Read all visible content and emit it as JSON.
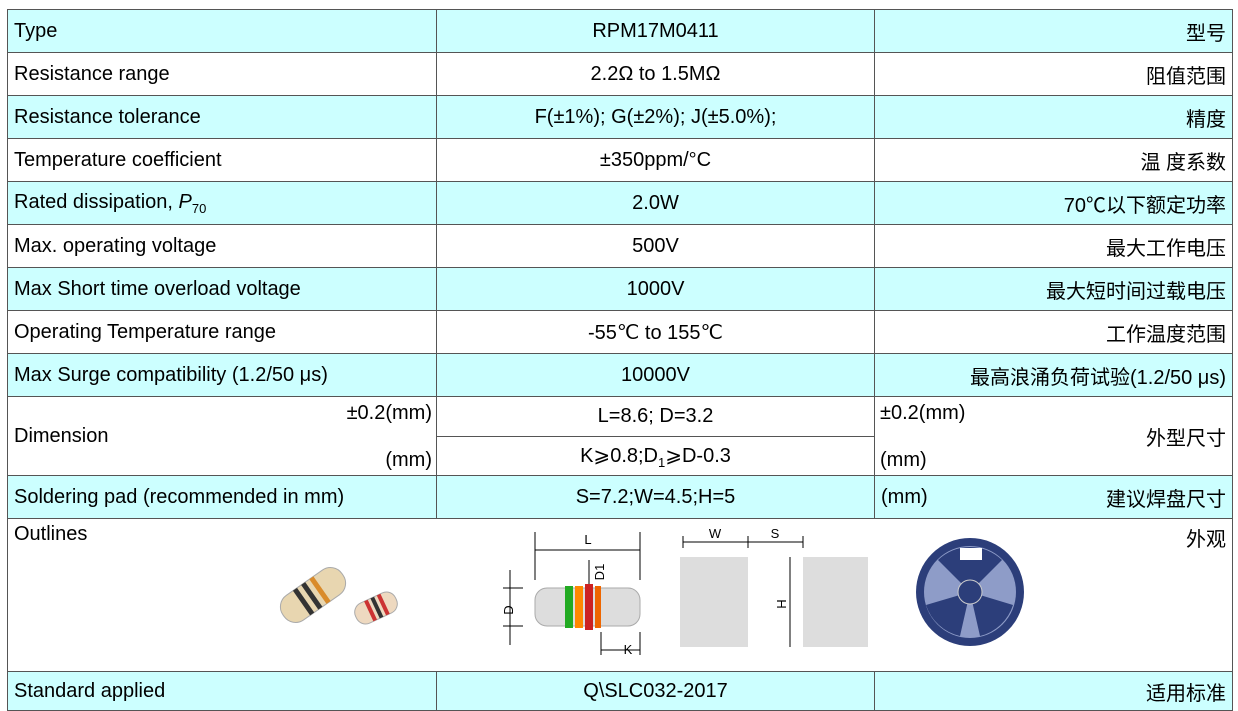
{
  "rows": [
    {
      "label": "Type",
      "value": "RPM17M0411",
      "cn": "型号"
    },
    {
      "label": "Resistance range",
      "value": "2.2Ω to 1.5MΩ",
      "cn": "阻值范围"
    },
    {
      "label": "Resistance tolerance",
      "value": "F(±1%);  G(±2%);  J(±5.0%);",
      "cn": "精度"
    },
    {
      "label": "Temperature coefficient",
      "value": "±350ppm/°C",
      "cn": "温 度系数"
    },
    {
      "label": {
        "text": "Rated dissipation, ",
        "symbol": "P",
        "subscript": "70"
      },
      "value": "2.0W",
      "cn": "70℃以下额定功率"
    },
    {
      "label": "Max. operating voltage",
      "value": "500V",
      "cn": "最大工作电压"
    },
    {
      "label": "Max Short time overload voltage",
      "value": "1000V",
      "cn": "最大短时间过载电压"
    },
    {
      "label": "Operating Temperature range",
      "value": "-55℃ to 155℃",
      "cn": "工作温度范围"
    },
    {
      "label": "Max Surge compatibility (1.2/50 μs)",
      "value": "10000V",
      "cn": "最高浪涌负荷试验(1.2/50 μs)"
    }
  ],
  "dimension": {
    "label": "Dimension",
    "unit_top": "±0.2(mm)",
    "unit_bottom": "(mm)",
    "value_top": "L=8.6; D=3.2",
    "value_bottom": {
      "a": "K⩾0.8;D",
      "sub": "1",
      "b": "⩾D-0.3"
    },
    "unit_top_right": "±0.2(mm)",
    "unit_bottom_right": "(mm)",
    "cn": "外型尺寸"
  },
  "soldering": {
    "label": "Soldering pad (recommended in mm)",
    "value": "S=7.2;W=4.5;H=5",
    "unit": "(mm)",
    "cn": "建议焊盘尺寸"
  },
  "outlines": {
    "label": "Outlines",
    "cn": "外观",
    "marks": {
      "L": "L",
      "D1": "D1",
      "D": "D",
      "K": "K",
      "W": "W",
      "S": "S",
      "H": "H"
    }
  },
  "standard": {
    "label": "Standard applied",
    "value": "Q\\SLC032-2017",
    "cn": "适用标准"
  }
}
